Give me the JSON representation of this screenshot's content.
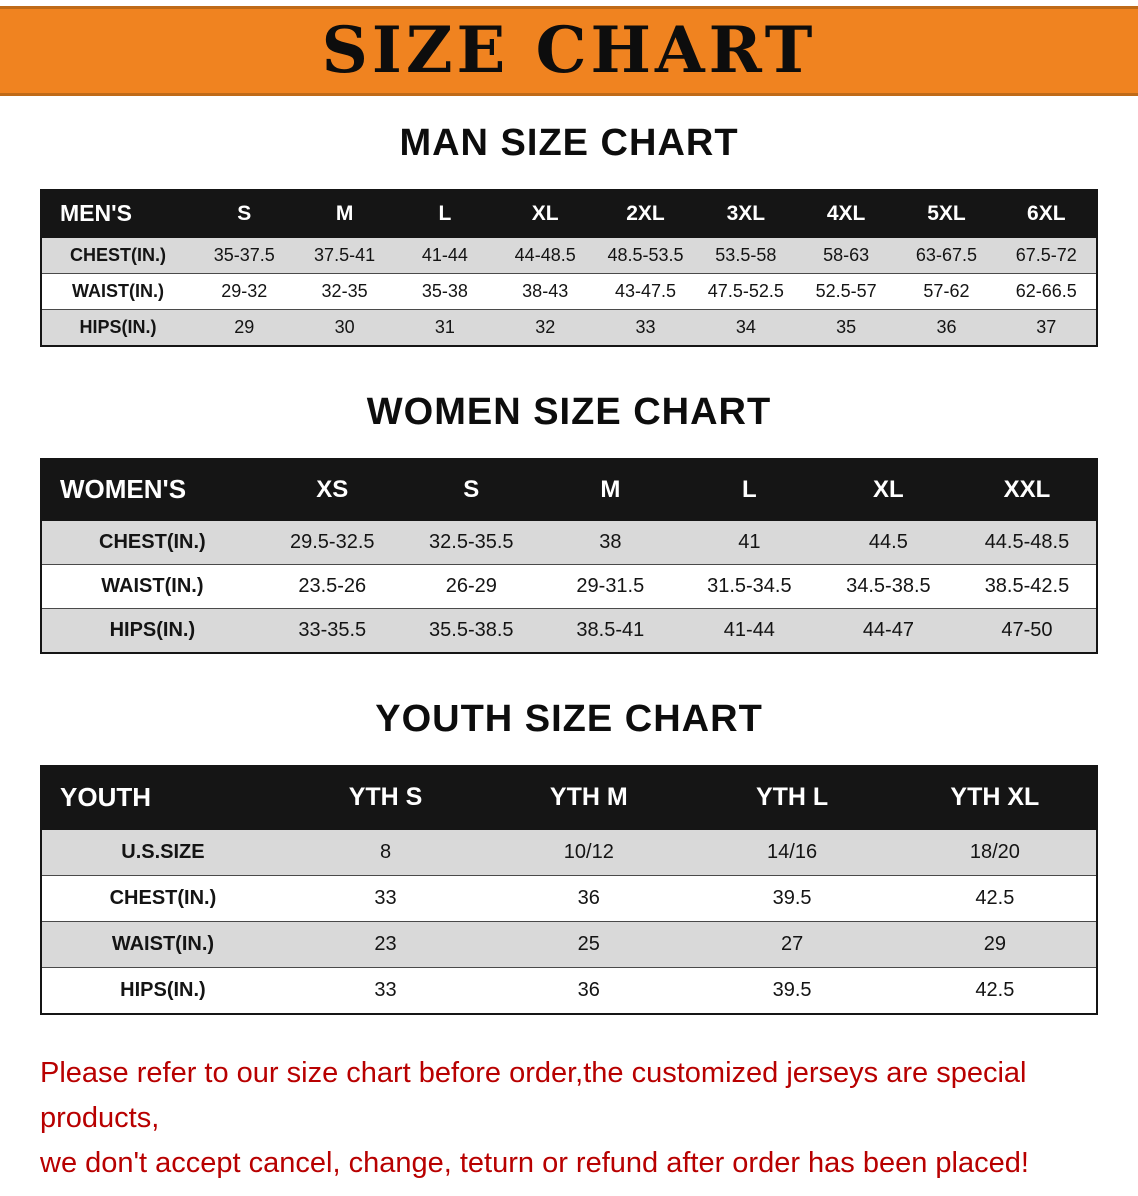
{
  "banner": {
    "title": "SIZE CHART"
  },
  "headings": {
    "men": "MAN SIZE CHART",
    "women": "WOMEN SIZE CHART",
    "youth": "YOUTH SIZE CHART"
  },
  "tables": {
    "men": {
      "header": [
        "MEN'S",
        "S",
        "M",
        "L",
        "XL",
        "2XL",
        "3XL",
        "4XL",
        "5XL",
        "6XL"
      ],
      "rows": [
        {
          "label": "CHEST(IN.)",
          "cells": [
            "35-37.5",
            "37.5-41",
            "41-44",
            "44-48.5",
            "48.5-53.5",
            "53.5-58",
            "58-63",
            "63-67.5",
            "67.5-72"
          ]
        },
        {
          "label": "WAIST(IN.)",
          "cells": [
            "29-32",
            "32-35",
            "35-38",
            "38-43",
            "43-47.5",
            "47.5-52.5",
            "52.5-57",
            "57-62",
            "62-66.5"
          ]
        },
        {
          "label": "HIPS(IN.)",
          "cells": [
            "29",
            "30",
            "31",
            "32",
            "33",
            "34",
            "35",
            "36",
            "37"
          ]
        }
      ]
    },
    "women": {
      "header": [
        "WOMEN'S",
        "XS",
        "S",
        "M",
        "L",
        "XL",
        "XXL"
      ],
      "rows": [
        {
          "label": "CHEST(IN.)",
          "cells": [
            "29.5-32.5",
            "32.5-35.5",
            "38",
            "41",
            "44.5",
            "44.5-48.5"
          ]
        },
        {
          "label": "WAIST(IN.)",
          "cells": [
            "23.5-26",
            "26-29",
            "29-31.5",
            "31.5-34.5",
            "34.5-38.5",
            "38.5-42.5"
          ]
        },
        {
          "label": "HIPS(IN.)",
          "cells": [
            "33-35.5",
            "35.5-38.5",
            "38.5-41",
            "41-44",
            "44-47",
            "47-50"
          ]
        }
      ]
    },
    "youth": {
      "header": [
        "YOUTH",
        "YTH S",
        "YTH M",
        "YTH L",
        "YTH XL"
      ],
      "rows": [
        {
          "label": "U.S.SIZE",
          "cells": [
            "8",
            "10/12",
            "14/16",
            "18/20"
          ]
        },
        {
          "label": "CHEST(IN.)",
          "cells": [
            "33",
            "36",
            "39.5",
            "42.5"
          ]
        },
        {
          "label": "WAIST(IN.)",
          "cells": [
            "23",
            "25",
            "27",
            "29"
          ]
        },
        {
          "label": "HIPS(IN.)",
          "cells": [
            "33",
            "36",
            "39.5",
            "42.5"
          ]
        }
      ]
    }
  },
  "footer": {
    "line1": "Please refer to our size chart before order,the customized jerseys are special products,",
    "line2": "we don't accept cancel, change, teturn or refund after order has been placed!"
  },
  "colors": {
    "banner_bg": "#f08320",
    "banner_border": "#bf6a18",
    "header_bg": "#151515",
    "header_text": "#ffffff",
    "stripe_gray": "#d9d9d9",
    "footer_red": "#b80000"
  }
}
